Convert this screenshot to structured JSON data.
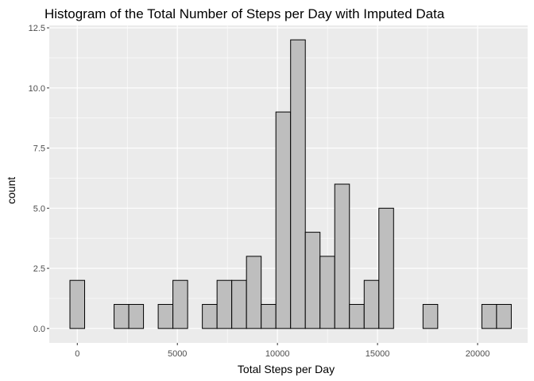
{
  "chart_data": {
    "type": "bar",
    "subtype": "histogram",
    "title": "Histogram of the Total Number of Steps per Day with Imputed Data",
    "xlabel": "Total Steps per Day",
    "ylabel": "count",
    "bin_width": 735,
    "bins": [
      {
        "x": 0,
        "count": 2
      },
      {
        "x": 735,
        "count": 0
      },
      {
        "x": 1470,
        "count": 0
      },
      {
        "x": 2205,
        "count": 1
      },
      {
        "x": 2940,
        "count": 1
      },
      {
        "x": 3675,
        "count": 0
      },
      {
        "x": 4410,
        "count": 1
      },
      {
        "x": 5145,
        "count": 2
      },
      {
        "x": 5880,
        "count": 0
      },
      {
        "x": 6615,
        "count": 1
      },
      {
        "x": 7350,
        "count": 2
      },
      {
        "x": 8085,
        "count": 2
      },
      {
        "x": 8820,
        "count": 3
      },
      {
        "x": 9555,
        "count": 1
      },
      {
        "x": 10290,
        "count": 9
      },
      {
        "x": 11025,
        "count": 12
      },
      {
        "x": 11760,
        "count": 4
      },
      {
        "x": 12495,
        "count": 3
      },
      {
        "x": 13230,
        "count": 6
      },
      {
        "x": 13965,
        "count": 1
      },
      {
        "x": 14700,
        "count": 2
      },
      {
        "x": 15435,
        "count": 5
      },
      {
        "x": 16170,
        "count": 0
      },
      {
        "x": 16905,
        "count": 0
      },
      {
        "x": 17640,
        "count": 1
      },
      {
        "x": 18375,
        "count": 0
      },
      {
        "x": 19110,
        "count": 0
      },
      {
        "x": 19845,
        "count": 0
      },
      {
        "x": 20580,
        "count": 1
      },
      {
        "x": 21315,
        "count": 1
      }
    ],
    "xlim": [
      -1400,
      22500
    ],
    "ylim": [
      -0.6,
      12.6
    ],
    "xticks": [
      {
        "value": 0,
        "label": "0"
      },
      {
        "value": 5000,
        "label": "5000"
      },
      {
        "value": 10000,
        "label": "10000"
      },
      {
        "value": 15000,
        "label": "15000"
      },
      {
        "value": 20000,
        "label": "20000"
      }
    ],
    "yticks": [
      {
        "value": 0,
        "label": "0.0"
      },
      {
        "value": 2.5,
        "label": "2.5"
      },
      {
        "value": 5,
        "label": "5.0"
      },
      {
        "value": 7.5,
        "label": "7.5"
      },
      {
        "value": 10,
        "label": "10.0"
      },
      {
        "value": 12.5,
        "label": "12.5"
      }
    ],
    "grid": true,
    "colors": {
      "panel": "#ebebeb",
      "grid_major": "#ffffff",
      "bar_fill": "#bebebe",
      "bar_stroke": "#000000",
      "tick_text": "#4d4d4d",
      "tick_mark": "#333333"
    }
  }
}
